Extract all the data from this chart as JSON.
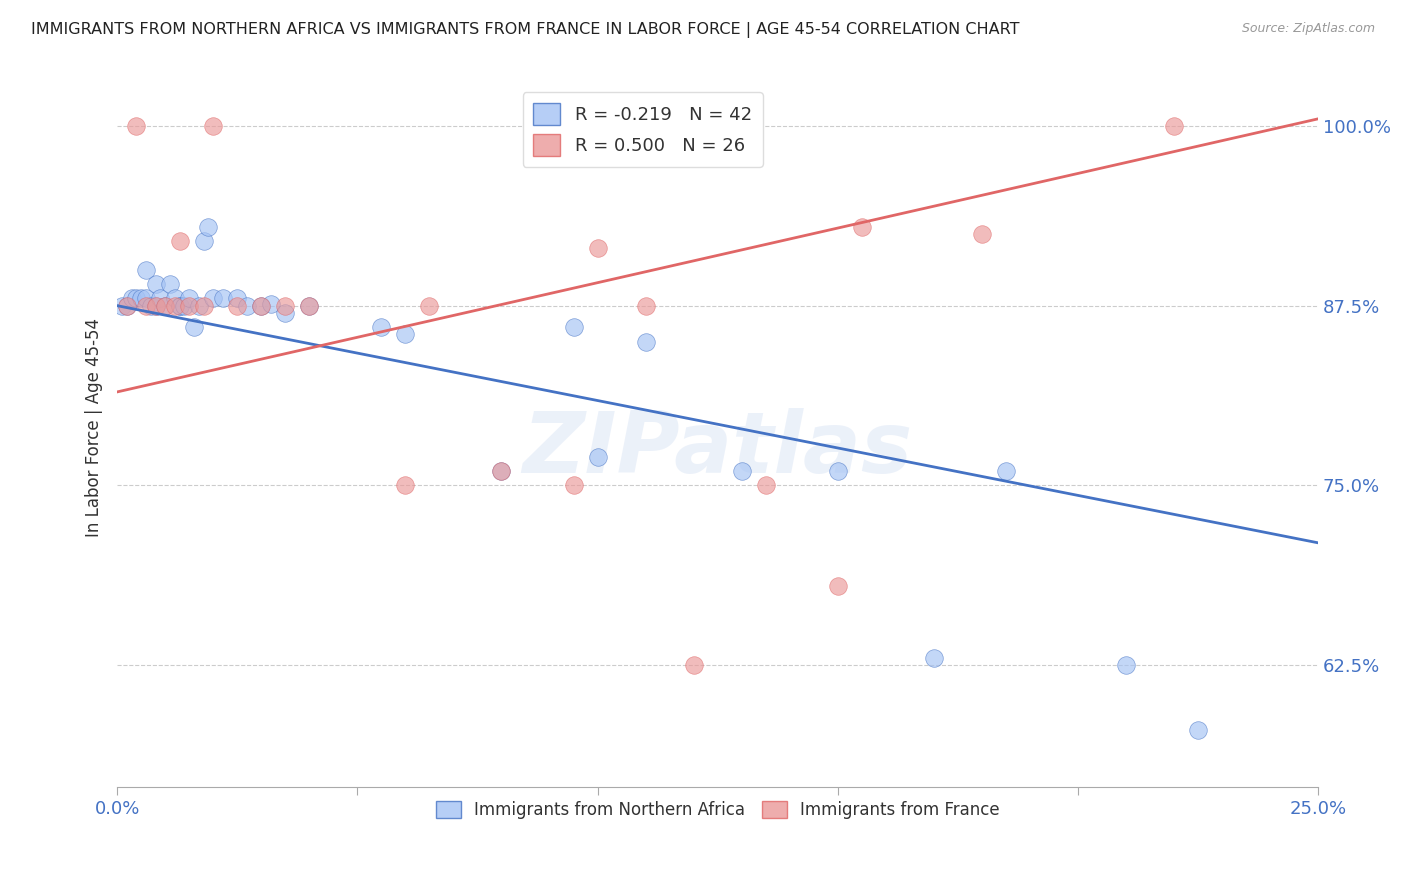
{
  "title": "IMMIGRANTS FROM NORTHERN AFRICA VS IMMIGRANTS FROM FRANCE IN LABOR FORCE | AGE 45-54 CORRELATION CHART",
  "source": "Source: ZipAtlas.com",
  "ylabel": "In Labor Force | Age 45-54",
  "y_ticks": [
    0.625,
    0.75,
    0.875,
    1.0
  ],
  "y_tick_labels": [
    "62.5%",
    "75.0%",
    "87.5%",
    "100.0%"
  ],
  "xlim": [
    0.0,
    0.25
  ],
  "ylim": [
    0.54,
    1.04
  ],
  "blue_R": -0.219,
  "blue_N": 42,
  "pink_R": 0.5,
  "pink_N": 26,
  "legend_label_blue": "Immigrants from Northern Africa",
  "legend_label_pink": "Immigrants from France",
  "blue_color": "#a4c2f4",
  "pink_color": "#ea9999",
  "blue_line_color": "#4472c4",
  "pink_line_color": "#e06666",
  "watermark": "ZIPatlas",
  "blue_line_x0": 0.0,
  "blue_line_y0": 0.875,
  "blue_line_x1": 0.25,
  "blue_line_y1": 0.71,
  "pink_line_x0": 0.0,
  "pink_line_y0": 0.815,
  "pink_line_x1": 0.25,
  "pink_line_y1": 1.005,
  "blue_x": [
    0.001,
    0.002,
    0.003,
    0.004,
    0.005,
    0.006,
    0.006,
    0.007,
    0.008,
    0.008,
    0.009,
    0.01,
    0.011,
    0.012,
    0.013,
    0.013,
    0.014,
    0.015,
    0.016,
    0.017,
    0.018,
    0.019,
    0.02,
    0.022,
    0.025,
    0.027,
    0.03,
    0.032,
    0.035,
    0.04,
    0.055,
    0.06,
    0.08,
    0.095,
    0.1,
    0.11,
    0.13,
    0.15,
    0.17,
    0.185,
    0.21,
    0.225
  ],
  "blue_y": [
    0.875,
    0.875,
    0.88,
    0.88,
    0.88,
    0.88,
    0.9,
    0.875,
    0.875,
    0.89,
    0.88,
    0.875,
    0.89,
    0.88,
    0.875,
    0.875,
    0.875,
    0.88,
    0.86,
    0.875,
    0.92,
    0.93,
    0.88,
    0.88,
    0.88,
    0.875,
    0.875,
    0.876,
    0.87,
    0.875,
    0.86,
    0.855,
    0.76,
    0.86,
    0.77,
    0.85,
    0.76,
    0.76,
    0.63,
    0.76,
    0.625,
    0.58
  ],
  "pink_x": [
    0.002,
    0.004,
    0.006,
    0.008,
    0.01,
    0.012,
    0.013,
    0.015,
    0.018,
    0.02,
    0.025,
    0.03,
    0.035,
    0.04,
    0.06,
    0.065,
    0.08,
    0.095,
    0.1,
    0.11,
    0.12,
    0.135,
    0.15,
    0.155,
    0.18,
    0.22
  ],
  "pink_y": [
    0.875,
    1.0,
    0.875,
    0.875,
    0.875,
    0.875,
    0.92,
    0.875,
    0.875,
    1.0,
    0.875,
    0.875,
    0.875,
    0.875,
    0.75,
    0.875,
    0.76,
    0.75,
    0.915,
    0.875,
    0.625,
    0.75,
    0.68,
    0.93,
    0.925,
    1.0
  ]
}
